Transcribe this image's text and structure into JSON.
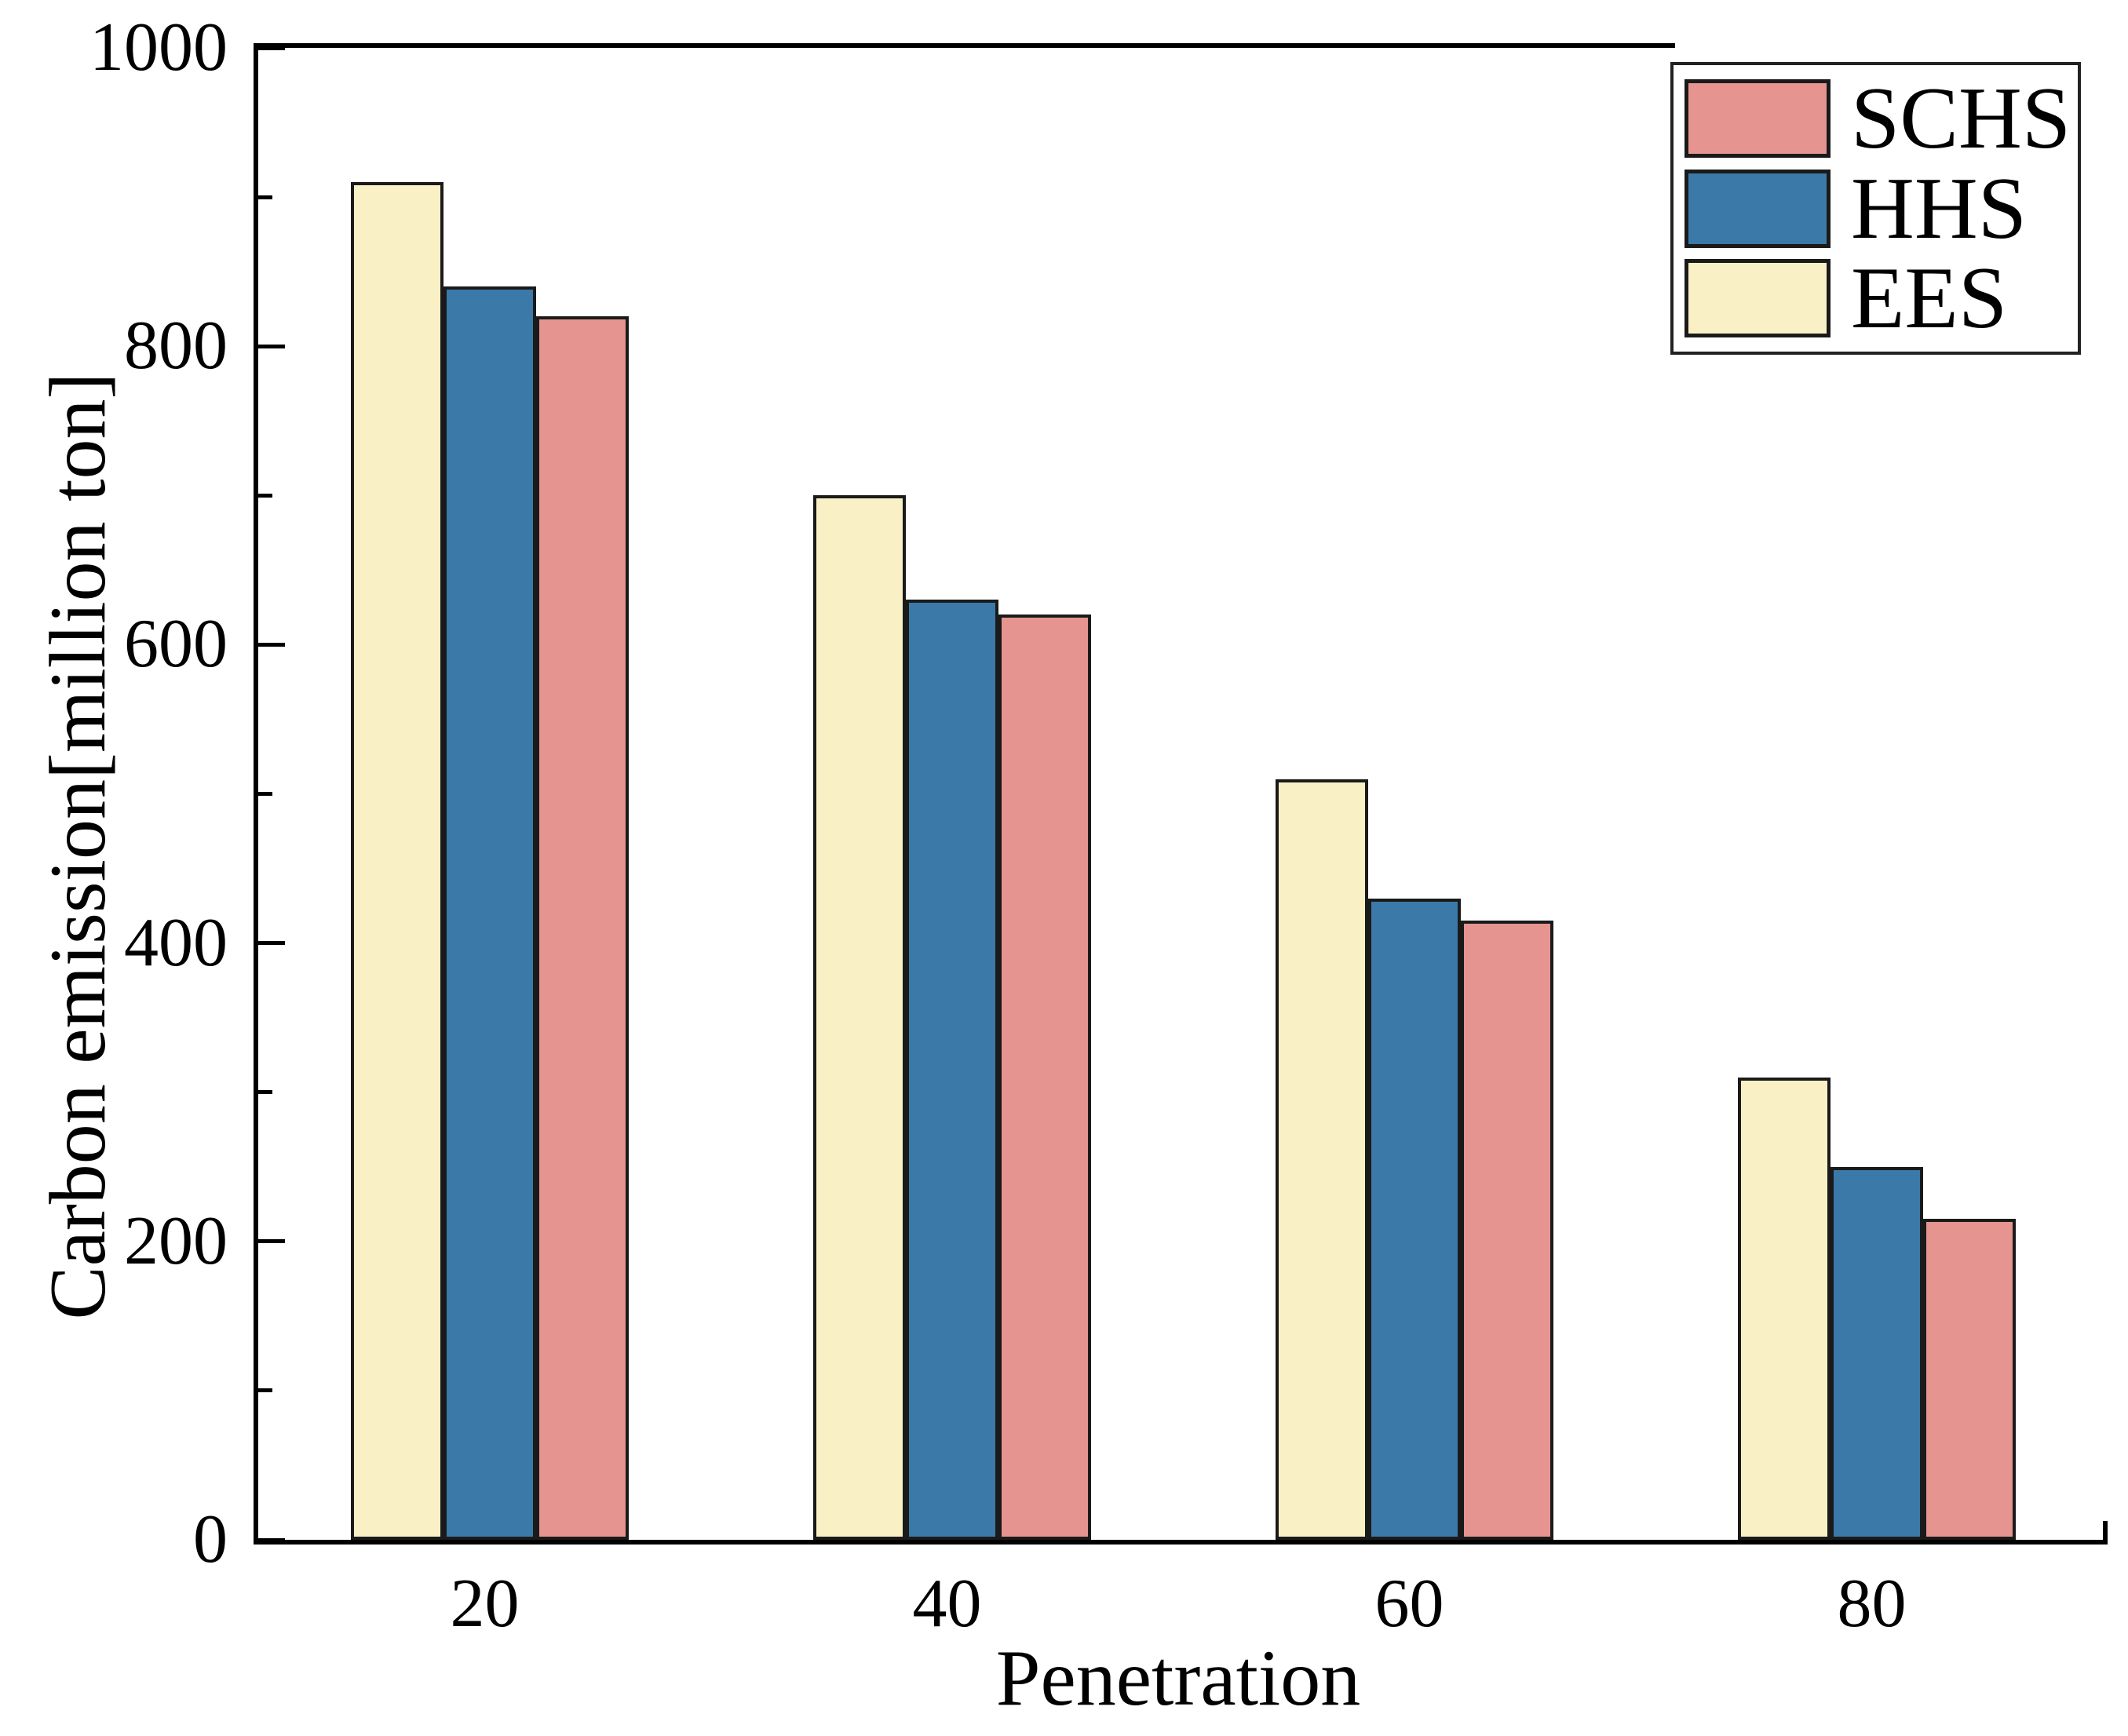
{
  "figure": {
    "background": "#FFFFFF",
    "axes": {
      "y_label": "Carbon emission[million ton]",
      "x_label": "Penetration"
    },
    "colors": {
      "bar_edge": "#1A1A1A",
      "spine": "#000000",
      "text": "#000000"
    }
  },
  "chart_data": {
    "type": "bar",
    "title": "",
    "xlabel": "Penetration",
    "ylabel": "Carbon emission[million ton]",
    "categories": [
      "20",
      "40",
      "60",
      "80"
    ],
    "series": [
      {
        "name": "SCHS",
        "color": "#E6948F",
        "values": [
          820,
          620,
          415,
          215
        ]
      },
      {
        "name": "HHS",
        "color": "#3B79A9",
        "values": [
          840,
          630,
          430,
          250
        ]
      },
      {
        "name": "EES",
        "color": "#FAF0C6",
        "values": [
          910,
          700,
          510,
          310
        ]
      }
    ],
    "bar_draw_order": [
      "EES",
      "HHS",
      "SCHS"
    ],
    "legend_order": [
      "SCHS",
      "HHS",
      "EES"
    ],
    "legend_position": "top-right",
    "ylim": [
      0,
      1000
    ],
    "yticks_major": [
      0,
      200,
      400,
      600,
      800,
      1000
    ],
    "yticks_minor": [
      100,
      300,
      500,
      700,
      900
    ],
    "tick_direction": "in",
    "grid": false
  }
}
